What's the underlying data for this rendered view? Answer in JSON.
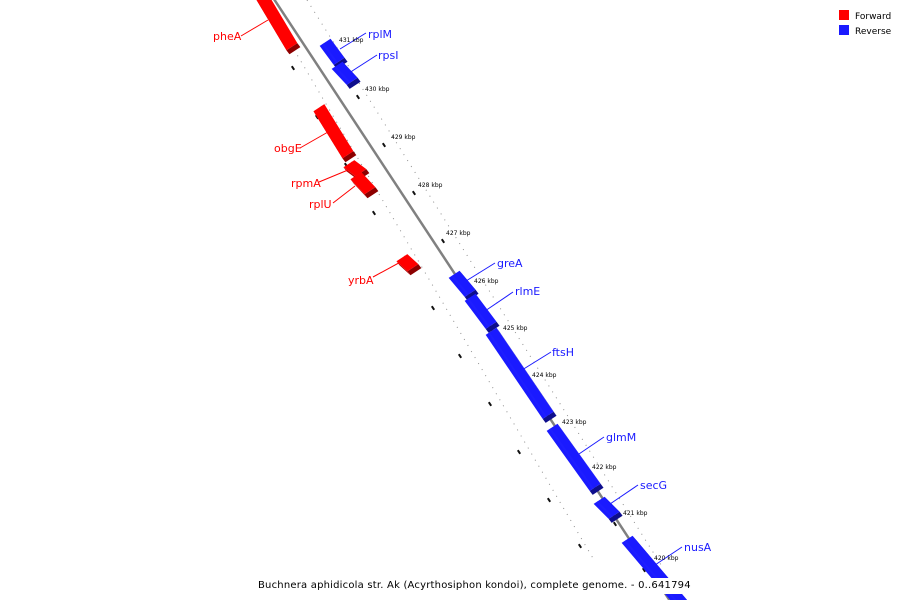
{
  "legend": {
    "forward_label": "Forward",
    "reverse_label": "Reverse",
    "forward_color": "#ff0000",
    "reverse_color": "#1a1aff"
  },
  "caption": "Buchnera aphidicola str. Ak (Acyrthosiphon kondoi), complete genome. - 0..641794",
  "axis_color": "#808080",
  "kbp_marks": [
    {
      "label": "431 kbp",
      "kbp": 431
    },
    {
      "label": "430 kbp",
      "kbp": 430
    },
    {
      "label": "429 kbp",
      "kbp": 429
    },
    {
      "label": "428 kbp",
      "kbp": 428
    },
    {
      "label": "427 kbp",
      "kbp": 427
    },
    {
      "label": "426 kbp",
      "kbp": 426
    },
    {
      "label": "425 kbp",
      "kbp": 425
    },
    {
      "label": "424 kbp",
      "kbp": 424
    },
    {
      "label": "423 kbp",
      "kbp": 423
    },
    {
      "label": "422 kbp",
      "kbp": 422
    },
    {
      "label": "421 kbp",
      "kbp": 421
    },
    {
      "label": "420 kbp",
      "kbp": 420
    }
  ],
  "genes": [
    {
      "name": "pheA",
      "strand": "forward"
    },
    {
      "name": "rplM",
      "strand": "reverse"
    },
    {
      "name": "rpsI",
      "strand": "reverse"
    },
    {
      "name": "obgE",
      "strand": "forward"
    },
    {
      "name": "rpmA",
      "strand": "forward"
    },
    {
      "name": "rplU",
      "strand": "forward"
    },
    {
      "name": "yrbA",
      "strand": "forward"
    },
    {
      "name": "greA",
      "strand": "reverse"
    },
    {
      "name": "rlmE",
      "strand": "reverse"
    },
    {
      "name": "ftsH",
      "strand": "reverse"
    },
    {
      "name": "glmM",
      "strand": "reverse"
    },
    {
      "name": "secG",
      "strand": "reverse"
    },
    {
      "name": "nusA",
      "strand": "reverse"
    }
  ]
}
